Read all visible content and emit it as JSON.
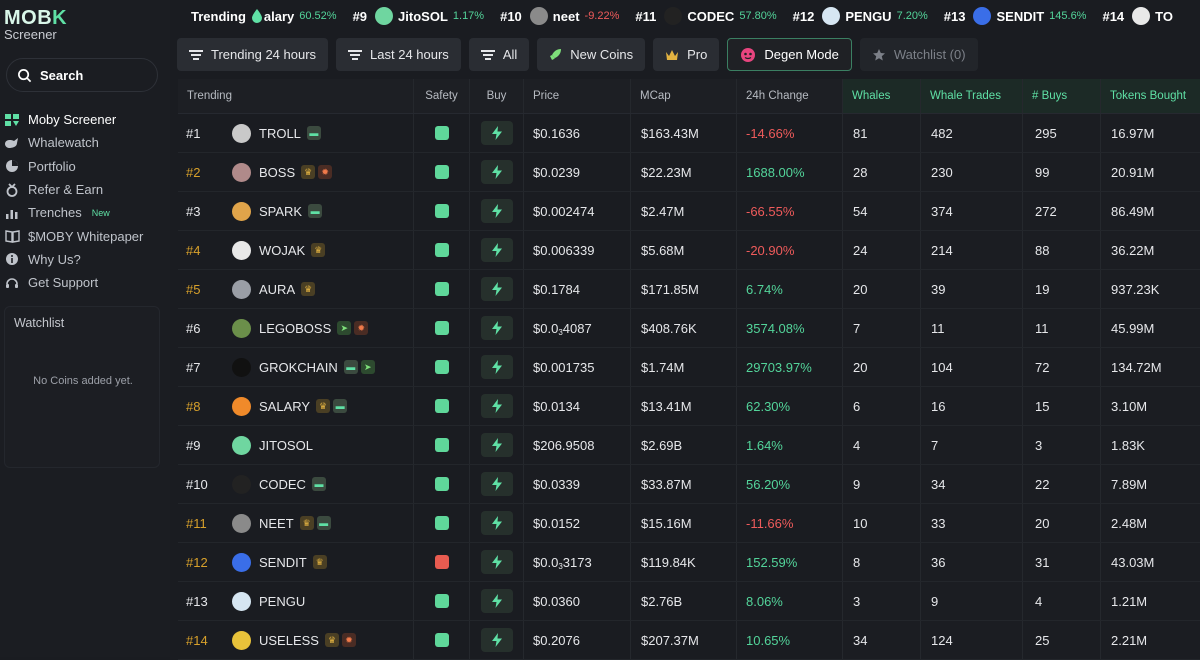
{
  "brand": {
    "logo_main": "MOB",
    "logo_k": "K",
    "logo_sub": "Screener"
  },
  "search": {
    "label": "Search"
  },
  "nav": [
    {
      "label": "Moby Screener",
      "icon": "moby-logo-icon",
      "active": true,
      "badge": ""
    },
    {
      "label": "Whalewatch",
      "icon": "whale-icon",
      "active": false,
      "badge": ""
    },
    {
      "label": "Portfolio",
      "icon": "pie-chart-icon",
      "active": false,
      "badge": ""
    },
    {
      "label": "Refer & Earn",
      "icon": "medal-icon",
      "active": false,
      "badge": ""
    },
    {
      "label": "Trenches",
      "icon": "bar-chart-icon",
      "active": false,
      "badge": "New"
    },
    {
      "label": "$MOBY Whitepaper",
      "icon": "book-icon",
      "active": false,
      "badge": ""
    },
    {
      "label": "Why Us?",
      "icon": "info-icon",
      "active": false,
      "badge": ""
    },
    {
      "label": "Get Support",
      "icon": "headset-icon",
      "active": false,
      "badge": ""
    }
  ],
  "watchlist_panel": {
    "title": "Watchlist",
    "empty": "No Coins added yet."
  },
  "ticker": {
    "label": "Trending",
    "items": [
      {
        "rank": "",
        "name": "alary",
        "change": "60.52%",
        "dir": "pos",
        "icon": "fire-icon"
      },
      {
        "rank": "#9",
        "name": "JitoSOL",
        "change": "1.17%",
        "dir": "pos",
        "icon": "jitosol-icon"
      },
      {
        "rank": "#10",
        "name": "neet",
        "change": "-9.22%",
        "dir": "neg",
        "icon": "neet-icon"
      },
      {
        "rank": "#11",
        "name": "CODEC",
        "change": "57.80%",
        "dir": "pos",
        "icon": "codec-icon"
      },
      {
        "rank": "#12",
        "name": "PENGU",
        "change": "7.20%",
        "dir": "pos",
        "icon": "pengu-icon"
      },
      {
        "rank": "#13",
        "name": "SENDIT",
        "change": "145.6%",
        "dir": "pos",
        "icon": "sendit-icon"
      },
      {
        "rank": "#14",
        "name": "TO",
        "change": "",
        "dir": "pos",
        "icon": "useless-icon"
      }
    ]
  },
  "filters": [
    {
      "label": "Trending 24 hours",
      "icon": "sort-icon",
      "style": "normal"
    },
    {
      "label": "Last 24 hours",
      "icon": "sort-icon",
      "style": "normal"
    },
    {
      "label": "All",
      "icon": "sort-icon",
      "style": "normal"
    },
    {
      "label": "New Coins",
      "icon": "rocket-icon",
      "style": "normal"
    },
    {
      "label": "Pro",
      "icon": "crown-icon",
      "style": "normal"
    },
    {
      "label": "Degen Mode",
      "icon": "degen-icon",
      "style": "outline"
    },
    {
      "label": "Watchlist (0)",
      "icon": "star-icon",
      "style": "dim"
    }
  ],
  "table": {
    "headers": {
      "trending": "Trending",
      "safety": "Safety",
      "buy": "Buy",
      "price": "Price",
      "mcap": "MCap",
      "change": "24h Change",
      "whales": "Whales",
      "whale_trades": "Whale Trades",
      "buys": "# Buys",
      "tokens_bought": "Tokens Bought"
    },
    "rows": [
      {
        "rank": "#1",
        "gold": false,
        "name": "TROLL",
        "tags": [
          "pill"
        ],
        "avatar_color": "#c9c9c9",
        "safe": true,
        "price_pre": "$0.1636",
        "price_sub": "",
        "price_post": "",
        "mcap": "$163.43M",
        "change": "-14.66%",
        "dir": "neg",
        "whales": "81",
        "whale_trades": "482",
        "buys": "295",
        "tokens": "16.97M"
      },
      {
        "rank": "#2",
        "gold": true,
        "name": "BOSS",
        "tags": [
          "crown",
          "fire"
        ],
        "avatar_color": "#b08a8a",
        "safe": true,
        "price_pre": "$0.0239",
        "price_sub": "",
        "price_post": "",
        "mcap": "$22.23M",
        "change": "1688.00%",
        "dir": "pos",
        "whales": "28",
        "whale_trades": "230",
        "buys": "99",
        "tokens": "20.91M"
      },
      {
        "rank": "#3",
        "gold": false,
        "name": "SPARK",
        "tags": [
          "pill"
        ],
        "avatar_color": "#e0a44a",
        "safe": true,
        "price_pre": "$0.002474",
        "price_sub": "",
        "price_post": "",
        "mcap": "$2.47M",
        "change": "-66.55%",
        "dir": "neg",
        "whales": "54",
        "whale_trades": "374",
        "buys": "272",
        "tokens": "86.49M"
      },
      {
        "rank": "#4",
        "gold": true,
        "name": "WOJAK",
        "tags": [
          "crown"
        ],
        "avatar_color": "#e8e8e8",
        "safe": true,
        "price_pre": "$0.006339",
        "price_sub": "",
        "price_post": "",
        "mcap": "$5.68M",
        "change": "-20.90%",
        "dir": "neg",
        "whales": "24",
        "whale_trades": "214",
        "buys": "88",
        "tokens": "36.22M"
      },
      {
        "rank": "#5",
        "gold": true,
        "name": "AURA",
        "tags": [
          "crown"
        ],
        "avatar_color": "#9a9ea6",
        "safe": true,
        "price_pre": "$0.1784",
        "price_sub": "",
        "price_post": "",
        "mcap": "$171.85M",
        "change": "6.74%",
        "dir": "pos",
        "whales": "20",
        "whale_trades": "39",
        "buys": "19",
        "tokens": "937.23K"
      },
      {
        "rank": "#6",
        "gold": false,
        "name": "LEGOBOSS",
        "tags": [
          "rocket",
          "fire"
        ],
        "avatar_color": "#6b8f4a",
        "safe": true,
        "price_pre": "$0.0",
        "price_sub": "3",
        "price_post": "4087",
        "mcap": "$408.76K",
        "change": "3574.08%",
        "dir": "pos",
        "whales": "7",
        "whale_trades": "11",
        "buys": "11",
        "tokens": "45.99M"
      },
      {
        "rank": "#7",
        "gold": false,
        "name": "GROKCHAIN",
        "tags": [
          "pill",
          "rocket"
        ],
        "avatar_color": "#111111",
        "safe": true,
        "price_pre": "$0.001735",
        "price_sub": "",
        "price_post": "",
        "mcap": "$1.74M",
        "change": "29703.97%",
        "dir": "pos",
        "whales": "20",
        "whale_trades": "104",
        "buys": "72",
        "tokens": "134.72M"
      },
      {
        "rank": "#8",
        "gold": true,
        "name": "SALARY",
        "tags": [
          "crown",
          "pill"
        ],
        "avatar_color": "#f08a2a",
        "safe": true,
        "price_pre": "$0.0134",
        "price_sub": "",
        "price_post": "",
        "mcap": "$13.41M",
        "change": "62.30%",
        "dir": "pos",
        "whales": "6",
        "whale_trades": "16",
        "buys": "15",
        "tokens": "3.10M"
      },
      {
        "rank": "#9",
        "gold": false,
        "name": "JITOSOL",
        "tags": [],
        "avatar_color": "#6fd6a0",
        "safe": true,
        "price_pre": "$206.9508",
        "price_sub": "",
        "price_post": "",
        "mcap": "$2.69B",
        "change": "1.64%",
        "dir": "pos",
        "whales": "4",
        "whale_trades": "7",
        "buys": "3",
        "tokens": "1.83K"
      },
      {
        "rank": "#10",
        "gold": false,
        "name": "CODEC",
        "tags": [
          "pill"
        ],
        "avatar_color": "#222222",
        "safe": true,
        "price_pre": "$0.0339",
        "price_sub": "",
        "price_post": "",
        "mcap": "$33.87M",
        "change": "56.20%",
        "dir": "pos",
        "whales": "9",
        "whale_trades": "34",
        "buys": "22",
        "tokens": "7.89M"
      },
      {
        "rank": "#11",
        "gold": true,
        "name": "NEET",
        "tags": [
          "crown",
          "pill"
        ],
        "avatar_color": "#8a8a8a",
        "safe": true,
        "price_pre": "$0.0152",
        "price_sub": "",
        "price_post": "",
        "mcap": "$15.16M",
        "change": "-11.66%",
        "dir": "neg",
        "whales": "10",
        "whale_trades": "33",
        "buys": "20",
        "tokens": "2.48M"
      },
      {
        "rank": "#12",
        "gold": true,
        "name": "SENDIT",
        "tags": [
          "crown"
        ],
        "avatar_color": "#3a6ee8",
        "safe": false,
        "price_pre": "$0.0",
        "price_sub": "3",
        "price_post": "3173",
        "mcap": "$119.84K",
        "change": "152.59%",
        "dir": "pos",
        "whales": "8",
        "whale_trades": "36",
        "buys": "31",
        "tokens": "43.03M"
      },
      {
        "rank": "#13",
        "gold": false,
        "name": "PENGU",
        "tags": [],
        "avatar_color": "#d6e6f2",
        "safe": true,
        "price_pre": "$0.0360",
        "price_sub": "",
        "price_post": "",
        "mcap": "$2.76B",
        "change": "8.06%",
        "dir": "pos",
        "whales": "3",
        "whale_trades": "9",
        "buys": "4",
        "tokens": "1.21M"
      },
      {
        "rank": "#14",
        "gold": true,
        "name": "USELESS",
        "tags": [
          "crown",
          "fire"
        ],
        "avatar_color": "#e8c23a",
        "safe": true,
        "price_pre": "$0.2076",
        "price_sub": "",
        "price_post": "",
        "mcap": "$207.37M",
        "change": "10.65%",
        "dir": "pos",
        "whales": "34",
        "whale_trades": "124",
        "buys": "25",
        "tokens": "2.21M"
      }
    ]
  },
  "colors": {
    "accent": "#5fe0a5",
    "positive": "#53d49a",
    "negative": "#ef5b5b",
    "gold_rank": "#d7a02b",
    "unsafe": "#e85b50"
  }
}
